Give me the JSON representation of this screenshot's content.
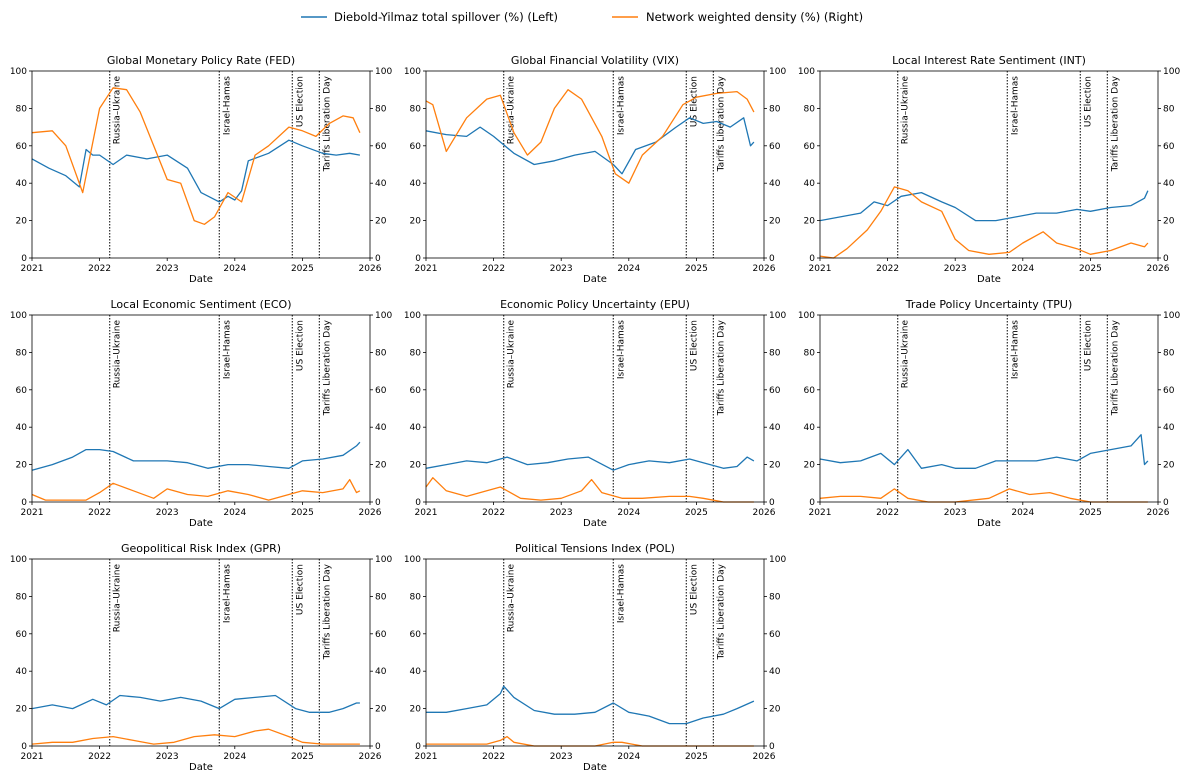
{
  "legend": {
    "left": "Diebold-Yilmaz total spillover (%) (Left)",
    "right": "Network weighted density (%) (Right)"
  },
  "colors": {
    "spillover": "#1f77b4",
    "density": "#ff7f0e"
  },
  "events": [
    {
      "label": "Russia–Ukraine",
      "date": 2022.15
    },
    {
      "label": "Israel-Hamas",
      "date": 2023.77
    },
    {
      "label": "US Election",
      "date": 2024.85
    },
    {
      "label": "Tariffs Liberation  Day",
      "date": 2025.25
    }
  ],
  "chart_data": [
    {
      "type": "line",
      "title": "Global Monetary Policy Rate (FED)",
      "xlabel": "Date",
      "xlim": [
        2021,
        2026
      ],
      "ylim": [
        0,
        100
      ],
      "y2lim": [
        0,
        100
      ],
      "x_ticks": [
        "2021",
        "2022",
        "2023",
        "2024",
        "2025",
        "2026"
      ],
      "y_ticks": [
        "0",
        "20",
        "40",
        "60",
        "80",
        "100"
      ],
      "series": [
        {
          "name": "Diebold-Yilmaz total spillover (%)",
          "axis": "left",
          "x": [
            2021,
            2021.25,
            2021.5,
            2021.7,
            2021.8,
            2021.9,
            2022,
            2022.2,
            2022.4,
            2022.7,
            2023,
            2023.3,
            2023.5,
            2023.77,
            2023.9,
            2024,
            2024.1,
            2024.2,
            2024.5,
            2024.8,
            2025,
            2025.3,
            2025.5,
            2025.7,
            2025.85
          ],
          "y": [
            53,
            48,
            44,
            38,
            58,
            55,
            55,
            50,
            55,
            53,
            55,
            48,
            35,
            30,
            33,
            31,
            36,
            52,
            56,
            63,
            60,
            56,
            55,
            56,
            55
          ]
        },
        {
          "name": "Network weighted density (%)",
          "axis": "right",
          "x": [
            2021,
            2021.3,
            2021.5,
            2021.75,
            2022,
            2022.2,
            2022.4,
            2022.6,
            2022.8,
            2023,
            2023.2,
            2023.4,
            2023.55,
            2023.7,
            2023.9,
            2024.1,
            2024.3,
            2024.5,
            2024.8,
            2025,
            2025.2,
            2025.4,
            2025.6,
            2025.75,
            2025.85
          ],
          "y": [
            67,
            68,
            60,
            35,
            80,
            91,
            90,
            78,
            60,
            42,
            40,
            20,
            18,
            22,
            35,
            30,
            55,
            60,
            70,
            68,
            65,
            72,
            76,
            75,
            67
          ]
        }
      ]
    },
    {
      "type": "line",
      "title": "Global Financial Volatility (VIX)",
      "xlabel": "Date",
      "xlim": [
        2021,
        2026
      ],
      "ylim": [
        0,
        100
      ],
      "y2lim": [
        0,
        100
      ],
      "x_ticks": [
        "2021",
        "2022",
        "2023",
        "2024",
        "2025",
        "2026"
      ],
      "y_ticks": [
        "0",
        "20",
        "40",
        "60",
        "80",
        "100"
      ],
      "series": [
        {
          "name": "Diebold-Yilmaz total spillover (%)",
          "axis": "left",
          "x": [
            2021,
            2021.3,
            2021.6,
            2021.8,
            2022,
            2022.3,
            2022.6,
            2022.9,
            2023.2,
            2023.5,
            2023.77,
            2023.9,
            2024.1,
            2024.4,
            2024.7,
            2024.9,
            2025.1,
            2025.3,
            2025.5,
            2025.7,
            2025.8,
            2025.85
          ],
          "y": [
            68,
            66,
            65,
            70,
            65,
            56,
            50,
            52,
            55,
            57,
            50,
            45,
            58,
            62,
            70,
            75,
            72,
            73,
            70,
            75,
            60,
            62
          ]
        },
        {
          "name": "Network weighted density (%)",
          "axis": "right",
          "x": [
            2021,
            2021.1,
            2021.3,
            2021.6,
            2021.9,
            2022.1,
            2022.3,
            2022.5,
            2022.7,
            2022.9,
            2023.1,
            2023.3,
            2023.6,
            2023.8,
            2024,
            2024.2,
            2024.5,
            2024.8,
            2025,
            2025.3,
            2025.6,
            2025.75,
            2025.85
          ],
          "y": [
            84,
            82,
            57,
            75,
            85,
            87,
            67,
            55,
            62,
            80,
            90,
            85,
            65,
            45,
            40,
            55,
            65,
            82,
            86,
            88,
            89,
            85,
            78
          ]
        }
      ]
    },
    {
      "type": "line",
      "title": "Local Interest Rate Sentiment (INT)",
      "xlabel": "Date",
      "xlim": [
        2021,
        2026
      ],
      "ylim": [
        0,
        100
      ],
      "y2lim": [
        0,
        100
      ],
      "x_ticks": [
        "2021",
        "2022",
        "2023",
        "2024",
        "2025",
        "2026"
      ],
      "y_ticks": [
        "0",
        "20",
        "40",
        "60",
        "80",
        "100"
      ],
      "series": [
        {
          "name": "Diebold-Yilmaz total spillover (%)",
          "axis": "left",
          "x": [
            2021,
            2021.3,
            2021.6,
            2021.8,
            2022,
            2022.2,
            2022.5,
            2022.8,
            2023,
            2023.3,
            2023.6,
            2023.9,
            2024.2,
            2024.5,
            2024.8,
            2025,
            2025.3,
            2025.6,
            2025.8,
            2025.85
          ],
          "y": [
            20,
            22,
            24,
            30,
            28,
            33,
            35,
            30,
            27,
            20,
            20,
            22,
            24,
            24,
            26,
            25,
            27,
            28,
            32,
            36
          ]
        },
        {
          "name": "Network weighted density (%)",
          "axis": "right",
          "x": [
            2021,
            2021.2,
            2021.4,
            2021.7,
            2021.9,
            2022.1,
            2022.3,
            2022.5,
            2022.8,
            2023,
            2023.2,
            2023.5,
            2023.8,
            2024,
            2024.3,
            2024.5,
            2024.8,
            2025,
            2025.3,
            2025.6,
            2025.8,
            2025.85
          ],
          "y": [
            1,
            0,
            5,
            15,
            25,
            38,
            36,
            30,
            25,
            10,
            4,
            2,
            3,
            8,
            14,
            8,
            5,
            2,
            4,
            8,
            6,
            8
          ]
        }
      ]
    },
    {
      "type": "line",
      "title": "Local Economic Sentiment (ECO)",
      "xlabel": "Date",
      "xlim": [
        2021,
        2026
      ],
      "ylim": [
        0,
        100
      ],
      "y2lim": [
        0,
        100
      ],
      "x_ticks": [
        "2021",
        "2022",
        "2023",
        "2024",
        "2025",
        "2026"
      ],
      "y_ticks": [
        "0",
        "20",
        "40",
        "60",
        "80",
        "100"
      ],
      "series": [
        {
          "name": "Diebold-Yilmaz total spillover (%)",
          "axis": "left",
          "x": [
            2021,
            2021.3,
            2021.6,
            2021.8,
            2022,
            2022.2,
            2022.5,
            2022.8,
            2023,
            2023.3,
            2023.6,
            2023.9,
            2024.2,
            2024.5,
            2024.8,
            2025,
            2025.3,
            2025.6,
            2025.8,
            2025.85
          ],
          "y": [
            17,
            20,
            24,
            28,
            28,
            27,
            22,
            22,
            22,
            21,
            18,
            20,
            20,
            19,
            18,
            22,
            23,
            25,
            30,
            32
          ]
        },
        {
          "name": "Network weighted density (%)",
          "axis": "right",
          "x": [
            2021,
            2021.2,
            2021.5,
            2021.8,
            2022,
            2022.2,
            2022.5,
            2022.8,
            2023,
            2023.3,
            2023.6,
            2023.9,
            2024.2,
            2024.5,
            2024.8,
            2025,
            2025.3,
            2025.6,
            2025.7,
            2025.8,
            2025.85
          ],
          "y": [
            4,
            1,
            1,
            1,
            5,
            10,
            6,
            2,
            7,
            4,
            3,
            6,
            4,
            1,
            4,
            6,
            5,
            7,
            12,
            5,
            6
          ]
        }
      ]
    },
    {
      "type": "line",
      "title": "Economic Policy Uncertainty (EPU)",
      "xlabel": "Date",
      "xlim": [
        2021,
        2026
      ],
      "ylim": [
        0,
        100
      ],
      "y2lim": [
        0,
        100
      ],
      "x_ticks": [
        "2021",
        "2022",
        "2023",
        "2024",
        "2025",
        "2026"
      ],
      "y_ticks": [
        "0",
        "20",
        "40",
        "60",
        "80",
        "100"
      ],
      "series": [
        {
          "name": "Diebold-Yilmaz total spillover (%)",
          "axis": "left",
          "x": [
            2021,
            2021.3,
            2021.6,
            2021.9,
            2022.2,
            2022.5,
            2022.8,
            2023.1,
            2023.4,
            2023.77,
            2024,
            2024.3,
            2024.6,
            2024.9,
            2025.1,
            2025.4,
            2025.6,
            2025.75,
            2025.85
          ],
          "y": [
            18,
            20,
            22,
            21,
            24,
            20,
            21,
            23,
            24,
            17,
            20,
            22,
            21,
            23,
            21,
            18,
            19,
            24,
            22
          ]
        },
        {
          "name": "Network weighted density (%)",
          "axis": "right",
          "x": [
            2021,
            2021.1,
            2021.3,
            2021.6,
            2021.9,
            2022.1,
            2022.4,
            2022.7,
            2023,
            2023.3,
            2023.45,
            2023.6,
            2023.9,
            2024.2,
            2024.6,
            2024.9,
            2025.1,
            2025.4,
            2025.6,
            2025.85
          ],
          "y": [
            8,
            13,
            6,
            3,
            6,
            8,
            2,
            1,
            2,
            6,
            12,
            5,
            2,
            2,
            3,
            3,
            2,
            0,
            0,
            0
          ]
        }
      ]
    },
    {
      "type": "line",
      "title": "Trade Policy Uncertainty (TPU)",
      "xlabel": "Date",
      "xlim": [
        2021,
        2026
      ],
      "ylim": [
        0,
        100
      ],
      "y2lim": [
        0,
        100
      ],
      "x_ticks": [
        "2021",
        "2022",
        "2023",
        "2024",
        "2025",
        "2026"
      ],
      "y_ticks": [
        "0",
        "20",
        "40",
        "60",
        "80",
        "100"
      ],
      "series": [
        {
          "name": "Diebold-Yilmaz total spillover (%)",
          "axis": "left",
          "x": [
            2021,
            2021.3,
            2021.6,
            2021.9,
            2022.1,
            2022.3,
            2022.5,
            2022.8,
            2023,
            2023.3,
            2023.6,
            2023.9,
            2024.2,
            2024.5,
            2024.8,
            2025,
            2025.3,
            2025.6,
            2025.75,
            2025.8,
            2025.85
          ],
          "y": [
            23,
            21,
            22,
            26,
            20,
            28,
            18,
            20,
            18,
            18,
            22,
            22,
            22,
            24,
            22,
            26,
            28,
            30,
            36,
            20,
            22
          ]
        },
        {
          "name": "Network weighted density (%)",
          "axis": "right",
          "x": [
            2021,
            2021.3,
            2021.6,
            2021.9,
            2022.1,
            2022.3,
            2022.6,
            2023,
            2023.5,
            2023.8,
            2024.1,
            2024.4,
            2024.7,
            2025,
            2025.4,
            2025.85
          ],
          "y": [
            2,
            3,
            3,
            2,
            7,
            2,
            0,
            0,
            2,
            7,
            4,
            5,
            2,
            0,
            0,
            0
          ]
        }
      ]
    },
    {
      "type": "line",
      "title": "Geopolitical Risk Index (GPR)",
      "xlabel": "Date",
      "xlim": [
        2021,
        2026
      ],
      "ylim": [
        0,
        100
      ],
      "y2lim": [
        0,
        100
      ],
      "x_ticks": [
        "2021",
        "2022",
        "2023",
        "2024",
        "2025",
        "2026"
      ],
      "y_ticks": [
        "0",
        "20",
        "40",
        "60",
        "80",
        "100"
      ],
      "series": [
        {
          "name": "Diebold-Yilmaz total spillover (%)",
          "axis": "left",
          "x": [
            2021,
            2021.3,
            2021.6,
            2021.9,
            2022.1,
            2022.3,
            2022.6,
            2022.9,
            2023.2,
            2023.5,
            2023.77,
            2024,
            2024.3,
            2024.6,
            2024.9,
            2025.1,
            2025.4,
            2025.6,
            2025.8,
            2025.85
          ],
          "y": [
            20,
            22,
            20,
            25,
            22,
            27,
            26,
            24,
            26,
            24,
            20,
            25,
            26,
            27,
            20,
            18,
            18,
            20,
            23,
            23
          ]
        },
        {
          "name": "Network weighted density (%)",
          "axis": "right",
          "x": [
            2021,
            2021.3,
            2021.6,
            2021.9,
            2022.2,
            2022.5,
            2022.8,
            2023.1,
            2023.4,
            2023.7,
            2024,
            2024.3,
            2024.5,
            2024.8,
            2025,
            2025.3,
            2025.6,
            2025.85
          ],
          "y": [
            1,
            2,
            2,
            4,
            5,
            3,
            1,
            2,
            5,
            6,
            5,
            8,
            9,
            5,
            2,
            1,
            1,
            1
          ]
        }
      ]
    },
    {
      "type": "line",
      "title": "Political Tensions Index (POL)",
      "xlabel": "Date",
      "xlim": [
        2021,
        2026
      ],
      "ylim": [
        0,
        100
      ],
      "y2lim": [
        0,
        100
      ],
      "x_ticks": [
        "2021",
        "2022",
        "2023",
        "2024",
        "2025",
        "2026"
      ],
      "y_ticks": [
        "0",
        "20",
        "40",
        "60",
        "80",
        "100"
      ],
      "series": [
        {
          "name": "Diebold-Yilmaz total spillover (%)",
          "axis": "left",
          "x": [
            2021,
            2021.3,
            2021.6,
            2021.9,
            2022.1,
            2022.15,
            2022.3,
            2022.6,
            2022.9,
            2023.2,
            2023.5,
            2023.77,
            2024,
            2024.3,
            2024.6,
            2024.85,
            2025.1,
            2025.4,
            2025.6,
            2025.85
          ],
          "y": [
            18,
            18,
            20,
            22,
            28,
            32,
            26,
            19,
            17,
            17,
            18,
            23,
            18,
            16,
            12,
            12,
            15,
            17,
            20,
            24
          ]
        },
        {
          "name": "Network weighted density (%)",
          "axis": "right",
          "x": [
            2021,
            2021.5,
            2021.9,
            2022.1,
            2022.2,
            2022.3,
            2022.6,
            2023,
            2023.5,
            2023.77,
            2023.9,
            2024.2,
            2024.6,
            2025,
            2025.4,
            2025.85
          ],
          "y": [
            1,
            1,
            1,
            3,
            5,
            2,
            0,
            0,
            0,
            2,
            2,
            0,
            0,
            0,
            0,
            0
          ]
        }
      ]
    }
  ]
}
